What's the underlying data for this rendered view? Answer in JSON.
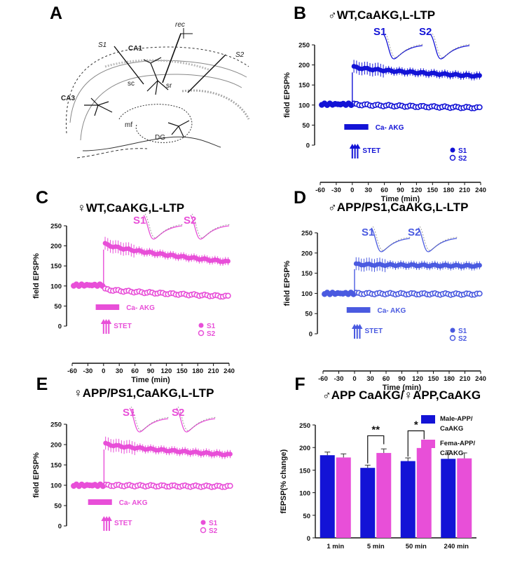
{
  "colors": {
    "blue": "#1313d6",
    "pink": "#e84fd8",
    "d_blue": "#4a5ae0",
    "text": "#111111",
    "sketch": "#222222"
  },
  "panels": {
    "A": {
      "label": "A",
      "labels": [
        "S1",
        "CA1",
        "rec",
        "S2",
        "CA3",
        "sc",
        "sr",
        "mf",
        "DG"
      ]
    },
    "B": {
      "label": "B",
      "title": "♂WT,CaAKG,L-LTP"
    },
    "C": {
      "label": "C",
      "title": "♀WT,CaAKG,L-LTP"
    },
    "D": {
      "label": "D",
      "title": "♂APP/PS1,CaAKG,L-LTP"
    },
    "E": {
      "label": "E",
      "title": "♀APP/PS1,CaAKG,L-LTP"
    },
    "F": {
      "label": "F",
      "title": "♂APP CaAKG/♀APP,CaAKG"
    }
  },
  "common": {
    "ylabel": "field EPSP%",
    "xlabel": "Time (min)",
    "xticks": [
      "-60",
      "-30",
      "0",
      "30",
      "60",
      "90",
      "120",
      "150",
      "180",
      "210",
      "240"
    ],
    "yticks": [
      "0",
      "50",
      "100",
      "150",
      "200",
      "250"
    ],
    "drug": "Ca- AKG",
    "stim": "STET",
    "s1": "S1",
    "s2": "S2"
  },
  "chart_data": [
    {
      "id": "B",
      "type": "scatter",
      "title": "♂WT,CaAKG,L-LTP",
      "xlabel": "Time (min)",
      "ylabel": "field EPSP%",
      "xlim": [
        -60,
        240
      ],
      "ylim": [
        0,
        250
      ],
      "drug_window_min": [
        -15,
        30
      ],
      "stet_min": [
        0,
        5,
        10
      ],
      "series": [
        {
          "name": "S1",
          "baseline": 103,
          "peak": 195,
          "end": 172
        },
        {
          "name": "S2",
          "baseline": 102,
          "peak": 102,
          "end": 93
        }
      ]
    },
    {
      "id": "C",
      "type": "scatter",
      "title": "♀WT,CaAKG,L-LTP",
      "xlabel": "Time (min)",
      "ylabel": "field EPSP%",
      "xlim": [
        -60,
        240
      ],
      "ylim": [
        0,
        250
      ],
      "drug_window_min": [
        -15,
        30
      ],
      "stet_min": [
        0,
        5,
        10
      ],
      "series": [
        {
          "name": "S1",
          "baseline": 103,
          "peak": 205,
          "end": 160
        },
        {
          "name": "S2",
          "baseline": 102,
          "peak": 92,
          "end": 74
        }
      ]
    },
    {
      "id": "D",
      "type": "scatter",
      "title": "♂APP/PS1,CaAKG,L-LTP",
      "xlabel": "Time (min)",
      "ylabel": "field EPSP%",
      "xlim": [
        -60,
        240
      ],
      "ylim": [
        0,
        250
      ],
      "drug_window_min": [
        -15,
        30
      ],
      "stet_min": [
        0,
        5,
        10
      ],
      "series": [
        {
          "name": "S1",
          "baseline": 100,
          "peak": 172,
          "end": 168
        },
        {
          "name": "S2",
          "baseline": 100,
          "peak": 100,
          "end": 98
        }
      ]
    },
    {
      "id": "E",
      "type": "scatter",
      "title": "♀APP/PS1,CaAKG,L-LTP",
      "xlabel": "Time (min)",
      "ylabel": "field EPSP%",
      "xlim": [
        -60,
        240
      ],
      "ylim": [
        0,
        250
      ],
      "drug_window_min": [
        -30,
        15
      ],
      "stet_min": [
        0,
        5,
        10
      ],
      "series": [
        {
          "name": "S1",
          "baseline": 100,
          "peak": 202,
          "end": 175
        },
        {
          "name": "S2",
          "baseline": 100,
          "peak": 100,
          "end": 97
        }
      ]
    },
    {
      "id": "F",
      "type": "bar",
      "title": "♂APP CaAKG/♀APP,CaAKG",
      "ylabel": "fEPSP(% change)",
      "ylim": [
        0,
        250
      ],
      "yticks": [
        "0",
        "50",
        "100",
        "150",
        "200",
        "250"
      ],
      "categories": [
        "1 min",
        "5 min",
        "50 min",
        "240 min"
      ],
      "series": [
        {
          "name": "Male-APP/ CaAKG",
          "legend": [
            "Male-APP/",
            "CaAKG"
          ],
          "values": [
            183,
            155,
            170,
            175
          ],
          "errors": [
            7,
            6,
            7,
            18
          ]
        },
        {
          "name": "Fema-APP/ CaAKG",
          "legend": [
            "Fema-APP/",
            "CaAKG"
          ],
          "values": [
            178,
            188,
            199,
            176
          ],
          "errors": [
            8,
            9,
            10,
            12
          ]
        }
      ],
      "significance": [
        {
          "category": "5 min",
          "label": "**"
        },
        {
          "category": "50 min",
          "label": "*"
        }
      ]
    }
  ]
}
